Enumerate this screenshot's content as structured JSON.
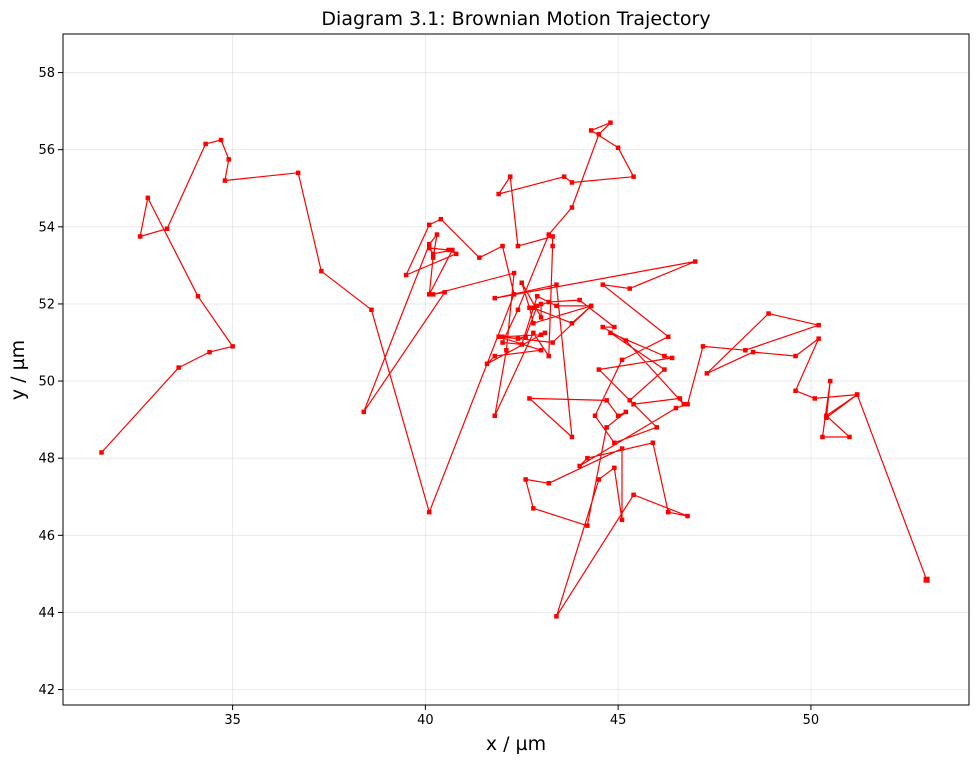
{
  "chart_data": {
    "type": "line",
    "title": "Diagram 3.1: Brownian Motion Trajectory",
    "xlabel": "x / µm",
    "ylabel": "y / µm",
    "xlim": [
      30.6,
      54.1
    ],
    "ylim": [
      41.6,
      59.0
    ],
    "xticks": [
      35,
      40,
      45,
      50
    ],
    "yticks": [
      42,
      44,
      46,
      48,
      50,
      52,
      54,
      56,
      58
    ],
    "grid": true,
    "series": [
      {
        "color": "#ff0000",
        "marker": "square",
        "x": [
          53.0,
          51.2,
          50.4,
          51.0,
          50.3,
          50.5,
          50.4,
          51.2,
          50.1,
          49.6,
          50.2,
          49.6,
          48.5,
          47.3,
          48.9,
          50.2,
          48.3,
          47.2,
          46.8,
          46.5,
          44.0,
          44.2,
          45.9,
          46.3,
          46.8,
          45.4,
          43.4,
          44.5,
          44.9,
          45.1,
          45.1,
          43.2,
          42.6,
          42.8,
          44.2,
          44.7,
          45.2,
          45.0,
          44.7,
          42.7,
          43.8,
          43.4,
          41.8,
          47.0,
          45.3,
          44.6,
          46.3,
          45.1,
          44.4,
          44.9,
          46.0,
          44.5,
          46.4,
          46.2,
          44.8,
          46.2,
          45.3,
          45.4,
          46.6,
          46.7,
          45.2,
          44.6,
          44.9,
          44.0,
          43.2,
          42.8,
          43.8,
          44.3,
          43.3,
          42.0,
          43.0,
          43.1,
          41.6,
          41.8,
          43.0,
          41.9,
          42.4,
          42.6,
          42.9,
          43.0,
          43.0,
          42.5,
          42.7,
          42.8,
          44.3,
          43.4,
          42.9,
          42.5,
          42.0,
          42.4,
          43.2,
          43.8,
          44.5,
          44.8,
          44.3,
          45.0,
          45.4,
          43.8,
          43.6,
          41.9,
          42.2,
          42.4,
          43.3,
          43.3,
          43.2,
          42.8,
          41.8,
          42.1,
          42.3,
          40.2,
          40.5,
          38.4,
          40.1,
          40.3,
          40.2,
          40.1,
          40.7,
          40.2,
          40.1,
          40.6,
          40.8,
          39.5,
          40.1,
          40.4,
          41.4,
          42.0,
          42.3,
          40.1,
          38.6,
          37.3,
          36.7,
          34.8,
          34.9,
          34.7,
          34.3,
          33.3,
          32.6,
          32.8,
          34.1,
          35.0,
          34.4,
          33.6,
          31.6
        ],
        "y": [
          44.85,
          49.65,
          49.1,
          48.55,
          48.55,
          50.0,
          49.05,
          49.65,
          49.55,
          49.75,
          51.1,
          50.65,
          50.75,
          50.2,
          51.75,
          51.45,
          50.8,
          50.9,
          49.4,
          49.3,
          47.8,
          48.0,
          48.4,
          46.6,
          46.5,
          47.05,
          43.9,
          47.45,
          47.75,
          46.4,
          48.25,
          47.35,
          47.45,
          46.7,
          46.25,
          48.8,
          49.2,
          49.1,
          49.5,
          49.55,
          48.55,
          52.5,
          52.15,
          53.1,
          52.4,
          52.5,
          51.15,
          50.55,
          49.1,
          48.4,
          48.8,
          50.3,
          50.6,
          50.65,
          51.25,
          50.3,
          49.5,
          49.4,
          49.55,
          49.4,
          51.05,
          51.4,
          51.4,
          52.1,
          52.05,
          51.9,
          51.5,
          51.95,
          51.0,
          51.15,
          51.2,
          51.25,
          50.45,
          50.65,
          50.8,
          51.15,
          51.1,
          51.15,
          51.95,
          52.0,
          51.65,
          52.55,
          51.9,
          51.5,
          51.95,
          51.95,
          52.2,
          50.95,
          51.0,
          51.85,
          53.8,
          54.5,
          56.4,
          56.7,
          56.5,
          56.05,
          55.3,
          55.15,
          55.3,
          54.85,
          55.3,
          53.5,
          53.75,
          53.5,
          50.65,
          51.25,
          49.1,
          50.8,
          52.8,
          52.25,
          52.3,
          49.2,
          53.55,
          53.8,
          53.2,
          52.25,
          53.4,
          53.3,
          53.45,
          53.4,
          53.3,
          52.75,
          54.05,
          54.2,
          53.2,
          53.5,
          52.25,
          46.6,
          51.85,
          52.85,
          55.4,
          55.2,
          55.75,
          56.25,
          56.15,
          53.95,
          53.75,
          54.75,
          52.2,
          50.9,
          50.75,
          50.35,
          48.15
        ]
      }
    ]
  }
}
